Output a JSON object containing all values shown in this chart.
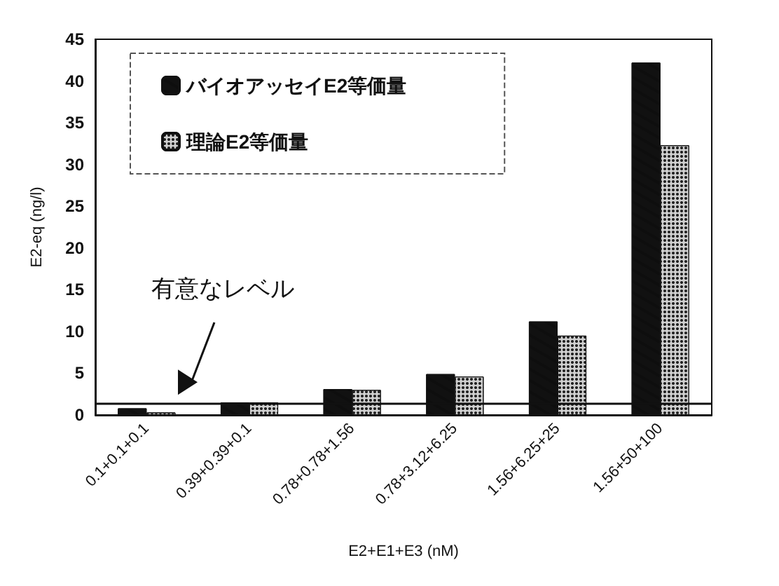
{
  "chart_data": {
    "type": "bar",
    "ylabel": "E2-eq (ng/l)",
    "xlabel": "E2+E1+E3 (nM)",
    "categories": [
      "0.1+0.1+0.1",
      "0.39+0.39+0.1",
      "0.78+0.78+1.56",
      "0.78+3.12+6.25",
      "1.56+6.25+25",
      "1.56+50+100"
    ],
    "series": [
      {
        "name": "バイオアッセイE2等価量",
        "color": "#111111",
        "values": [
          0.8,
          1.5,
          3.1,
          4.9,
          11.2,
          42.2
        ]
      },
      {
        "name": "理論E2等価量",
        "color": "#d0d0d0",
        "values": [
          0.3,
          1.5,
          3.0,
          4.6,
          9.5,
          32.3
        ]
      }
    ],
    "ylim": [
      0,
      45
    ],
    "yticks": [
      0,
      5,
      10,
      15,
      20,
      25,
      30,
      35,
      40,
      45
    ],
    "grid": false,
    "legend": "top left",
    "annotations": [
      "有意なレベル"
    ],
    "ref_lines": [
      {
        "axis": "y",
        "value": 1.4,
        "color": "#111111"
      }
    ]
  }
}
